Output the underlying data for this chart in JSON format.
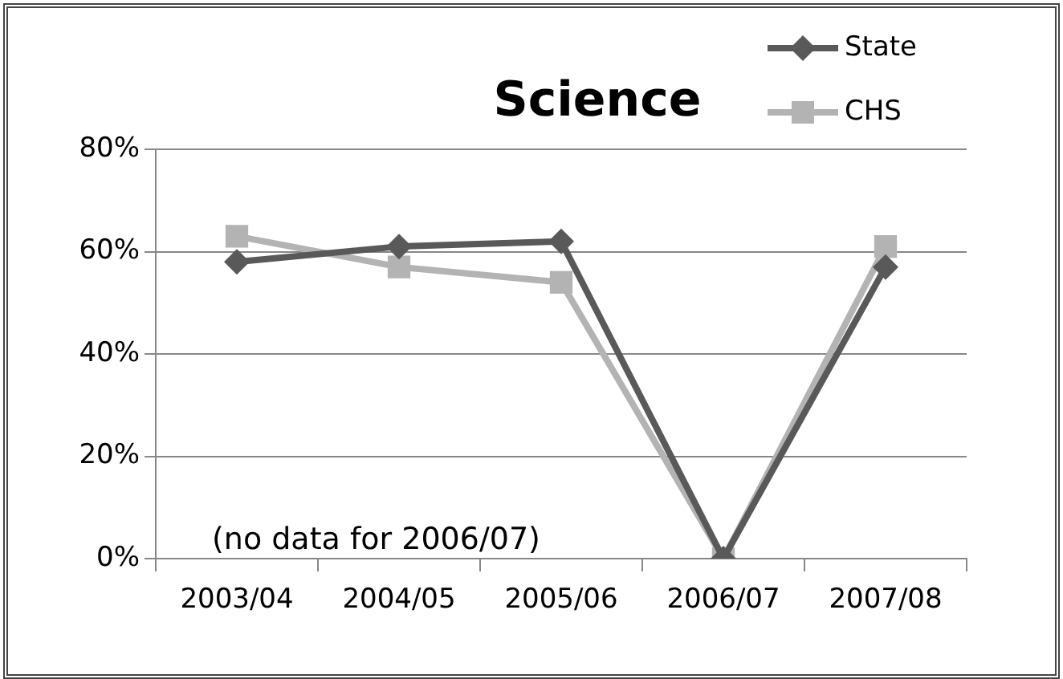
{
  "chart_data": {
    "type": "line",
    "title": "Science",
    "categories": [
      "2003/04",
      "2004/05",
      "2005/06",
      "2006/07",
      "2007/08"
    ],
    "series": [
      {
        "name": "State",
        "color": "#595959",
        "marker": "diamond",
        "values": [
          58,
          61,
          62,
          0,
          57
        ]
      },
      {
        "name": "CHS",
        "color": "#b3b3b3",
        "marker": "square",
        "values": [
          63,
          57,
          54,
          0,
          61
        ]
      }
    ],
    "ylim": [
      0,
      80
    ],
    "yticks": [
      {
        "value": 0,
        "label": "0%"
      },
      {
        "value": 20,
        "label": "20%"
      },
      {
        "value": 40,
        "label": "40%"
      },
      {
        "value": 60,
        "label": "60%"
      },
      {
        "value": 80,
        "label": "80%"
      }
    ],
    "grid": "y",
    "legend": "top right",
    "line_style": "solid",
    "annotations": [
      "(no data for 2006/07)"
    ]
  }
}
